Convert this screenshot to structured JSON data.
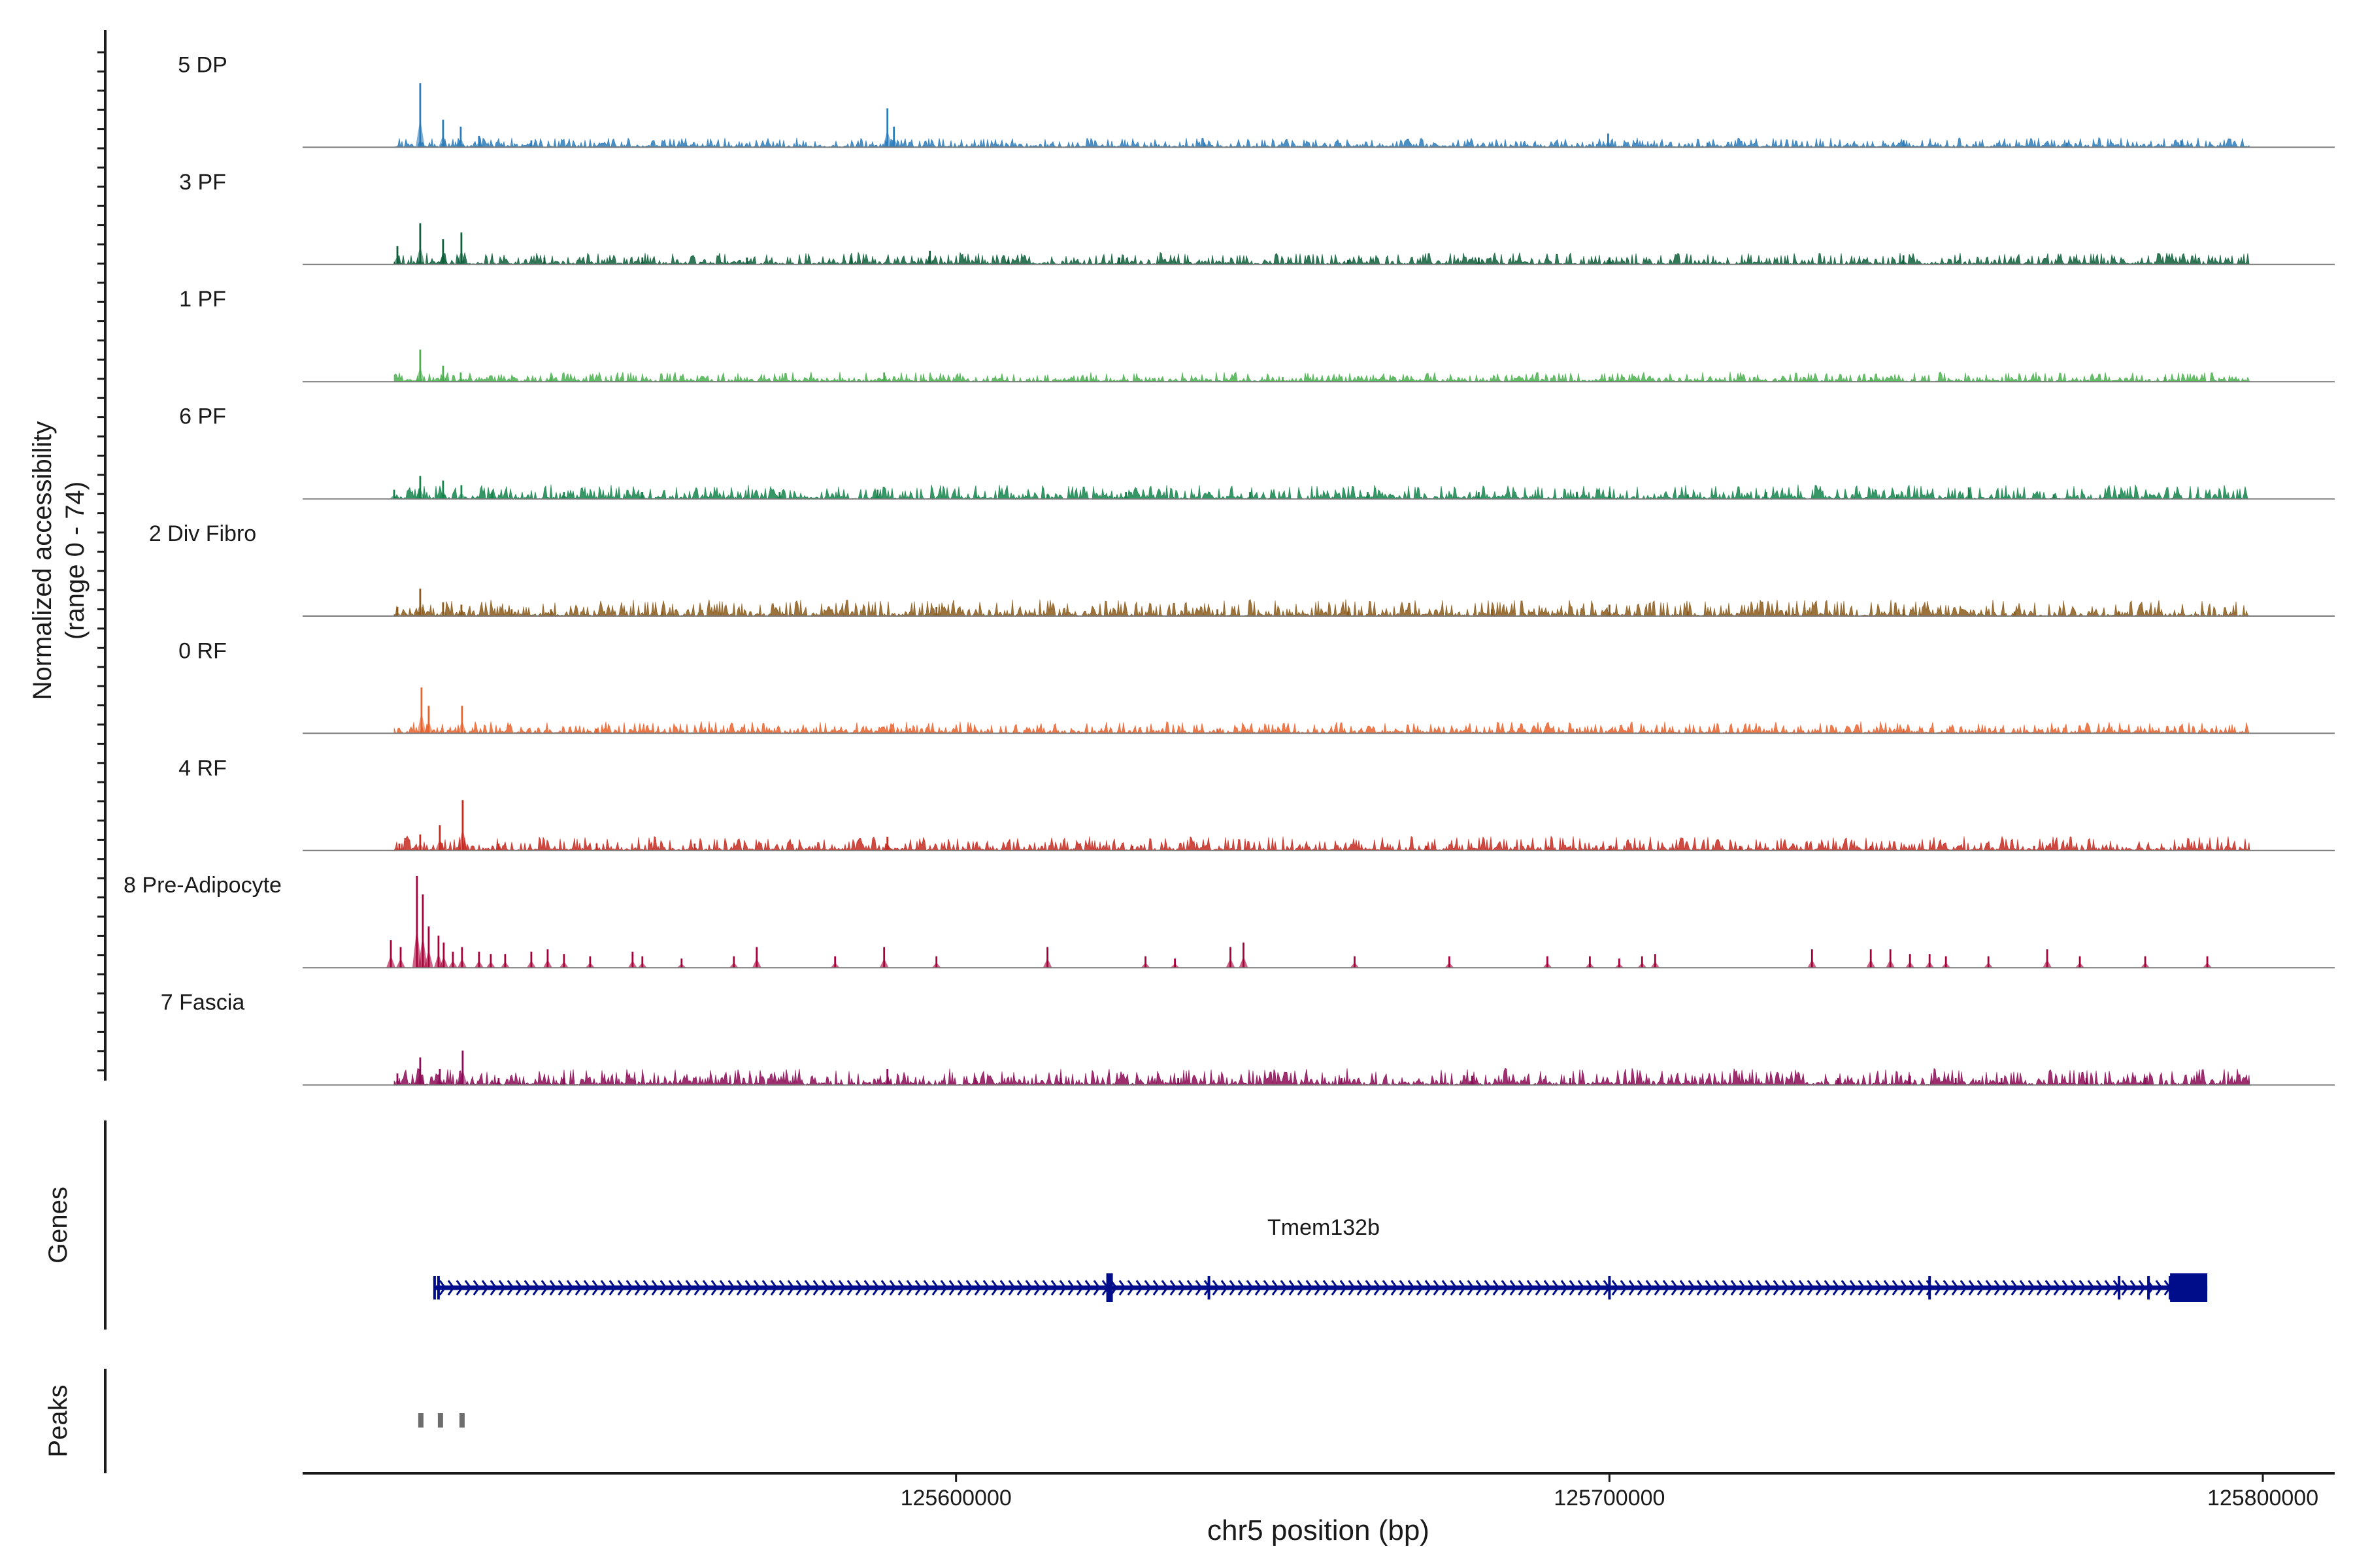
{
  "chart_data": {
    "type": "area",
    "coverage": {
      "ylabel_line1": "Normalized accessibility",
      "ylabel_line2": "(range 0 - 74)",
      "y_range": [
        0,
        74
      ],
      "tracks": [
        {
          "name": "5 DP",
          "color": "#2B7BBA",
          "baseline": 0.4,
          "peaks": [
            [
              125518000,
              28
            ],
            [
              125521500,
              12
            ],
            [
              125524200,
              9
            ],
            [
              125527000,
              5
            ],
            [
              125535000,
              3
            ],
            [
              125589500,
              17
            ],
            [
              125590500,
              9
            ],
            [
              125638000,
              2
            ],
            [
              125699800,
              6
            ],
            [
              125715000,
              2
            ],
            [
              125745000,
              3
            ],
            [
              125770000,
              2
            ],
            [
              125787500,
              3
            ]
          ]
        },
        {
          "name": "3 PF",
          "color": "#0E5F3A",
          "baseline": 0.5,
          "peaks": [
            [
              125514500,
              8
            ],
            [
              125518000,
              18
            ],
            [
              125521500,
              11
            ],
            [
              125524300,
              14
            ],
            [
              125537000,
              3
            ],
            [
              125552000,
              3
            ],
            [
              125568000,
              3
            ],
            [
              125584000,
              3
            ],
            [
              125596000,
              6
            ],
            [
              125608000,
              2
            ],
            [
              125625000,
              3
            ],
            [
              125660000,
              2
            ],
            [
              125680000,
              3
            ],
            [
              125700000,
              3
            ],
            [
              125745000,
              4
            ]
          ]
        },
        {
          "name": "1 PF",
          "color": "#4CB050",
          "baseline": 0.4,
          "peaks": [
            [
              125518000,
              14
            ],
            [
              125521500,
              7
            ],
            [
              125524200,
              4
            ],
            [
              125538000,
              2
            ],
            [
              125589000,
              4
            ],
            [
              125620000,
              2
            ],
            [
              125650000,
              2
            ],
            [
              125700000,
              2
            ],
            [
              125740000,
              2
            ],
            [
              125785000,
              2
            ]
          ]
        },
        {
          "name": "6 PF",
          "color": "#14844B",
          "baseline": 0.6,
          "peaks": [
            [
              125514000,
              4
            ],
            [
              125518000,
              10
            ],
            [
              125521500,
              8
            ],
            [
              125524300,
              6
            ],
            [
              125529000,
              3
            ],
            [
              125540000,
              3
            ],
            [
              125552000,
              3
            ],
            [
              125573000,
              3
            ],
            [
              125588000,
              4
            ],
            [
              125614000,
              2
            ],
            [
              125626000,
              3
            ],
            [
              125645000,
              3
            ],
            [
              125663000,
              3
            ],
            [
              125680000,
              3
            ],
            [
              125695000,
              3
            ],
            [
              125700000,
              3
            ],
            [
              125712000,
              2
            ],
            [
              125724000,
              3
            ],
            [
              125744000,
              2
            ],
            [
              125755000,
              5
            ],
            [
              125768000,
              2
            ],
            [
              125778000,
              2
            ]
          ]
        },
        {
          "name": "2 Div Fibro",
          "color": "#8B5A1A",
          "baseline": 0.7,
          "peaks": [
            [
              125514500,
              4
            ],
            [
              125518000,
              12
            ],
            [
              125521500,
              6
            ],
            [
              125524300,
              5
            ],
            [
              125532000,
              3
            ],
            [
              125538000,
              3
            ],
            [
              125555000,
              2
            ],
            [
              125597000,
              4
            ],
            [
              125640000,
              3
            ],
            [
              125660000,
              2
            ],
            [
              125682000,
              3
            ],
            [
              125700000,
              5
            ],
            [
              125712000,
              2
            ],
            [
              125727000,
              2
            ],
            [
              125745000,
              3
            ],
            [
              125762000,
              2
            ],
            [
              125778000,
              2
            ]
          ]
        },
        {
          "name": "0 RF",
          "color": "#E9632D",
          "baseline": 0.5,
          "peaks": [
            [
              125518200,
              20
            ],
            [
              125519300,
              12
            ],
            [
              125524400,
              12
            ],
            [
              125545000,
              2
            ],
            [
              125590000,
              2
            ],
            [
              125640000,
              2
            ],
            [
              125695000,
              2
            ],
            [
              125745000,
              2
            ]
          ]
        },
        {
          "name": "4 RF",
          "color": "#C62A1F",
          "baseline": 0.6,
          "peaks": [
            [
              125514800,
              3
            ],
            [
              125518000,
              7
            ],
            [
              125521000,
              11
            ],
            [
              125524500,
              22
            ],
            [
              125530000,
              3
            ],
            [
              125545000,
              3
            ],
            [
              125560000,
              3
            ],
            [
              125589500,
              6
            ],
            [
              125627000,
              2
            ],
            [
              125672000,
              2
            ],
            [
              125700000,
              2
            ],
            [
              125720000,
              2
            ],
            [
              125740000,
              2
            ],
            [
              125765000,
              2
            ]
          ]
        },
        {
          "name": "8 Pre-Adipocyte",
          "color": "#A80038",
          "baseline": 0,
          "peaks": [
            [
              125513500,
              12
            ],
            [
              125515000,
              9
            ],
            [
              125517500,
              40
            ],
            [
              125518400,
              32
            ],
            [
              125519300,
              18
            ],
            [
              125520800,
              14
            ],
            [
              125521600,
              11
            ],
            [
              125523000,
              7
            ],
            [
              125524400,
              9
            ],
            [
              125527000,
              7
            ],
            [
              125528800,
              6
            ],
            [
              125531000,
              6
            ],
            [
              125535000,
              7
            ],
            [
              125537500,
              8
            ],
            [
              125540000,
              6
            ],
            [
              125544000,
              5
            ],
            [
              125550500,
              7
            ],
            [
              125552000,
              5
            ],
            [
              125558000,
              4
            ],
            [
              125566000,
              5
            ],
            [
              125569500,
              9
            ],
            [
              125581500,
              5
            ],
            [
              125589000,
              9
            ],
            [
              125597000,
              5
            ],
            [
              125614000,
              9
            ],
            [
              125629000,
              5
            ],
            [
              125633500,
              4
            ],
            [
              125642000,
              9
            ],
            [
              125644000,
              11
            ],
            [
              125661000,
              5
            ],
            [
              125675500,
              5
            ],
            [
              125690500,
              5
            ],
            [
              125697000,
              5
            ],
            [
              125701500,
              4
            ],
            [
              125705000,
              5
            ],
            [
              125707000,
              6
            ],
            [
              125731000,
              8
            ],
            [
              125740000,
              8
            ],
            [
              125743000,
              8
            ],
            [
              125746000,
              6
            ],
            [
              125749000,
              6
            ],
            [
              125751500,
              5
            ],
            [
              125758000,
              5
            ],
            [
              125767000,
              8
            ],
            [
              125772000,
              5
            ],
            [
              125782000,
              5
            ],
            [
              125791500,
              5
            ]
          ]
        },
        {
          "name": "7 Fascia",
          "color": "#8C0A56",
          "baseline": 0.7,
          "peaks": [
            [
              125514500,
              5
            ],
            [
              125518000,
              12
            ],
            [
              125521000,
              7
            ],
            [
              125524500,
              15
            ],
            [
              125530000,
              3
            ],
            [
              125540000,
              3
            ],
            [
              125589500,
              7
            ],
            [
              125603000,
              3
            ],
            [
              125616000,
              3
            ],
            [
              125634000,
              3
            ],
            [
              125659000,
              3
            ],
            [
              125679000,
              4
            ],
            [
              125694000,
              3
            ],
            [
              125735000,
              3
            ],
            [
              125746000,
              4
            ],
            [
              125753000,
              3
            ],
            [
              125760000,
              3
            ],
            [
              125773000,
              3
            ],
            [
              125782000,
              3
            ]
          ]
        }
      ]
    },
    "genes": {
      "label": "Genes",
      "gene_name": "Tmem132b",
      "start": 125520200,
      "end": 125791500,
      "color": "#000D8A",
      "exons": [
        125520200,
        125520800,
        125623300,
        125638700,
        125700000,
        125749000,
        125778000,
        125782500,
        125785800,
        125787200
      ]
    },
    "peaks": {
      "label": "Peaks",
      "color": "#6E6E6E",
      "regions": [
        [
          125517700,
          125518500
        ],
        [
          125520700,
          125521500
        ],
        [
          125524000,
          125524800
        ]
      ]
    },
    "x_axis": {
      "xlabel": "chr5 position (bp)",
      "xlim": [
        125500000,
        125811000
      ],
      "ticks": [
        125600000,
        125700000,
        125800000
      ],
      "tick_labels": [
        "125600000",
        "125700000",
        "125800000"
      ]
    }
  }
}
